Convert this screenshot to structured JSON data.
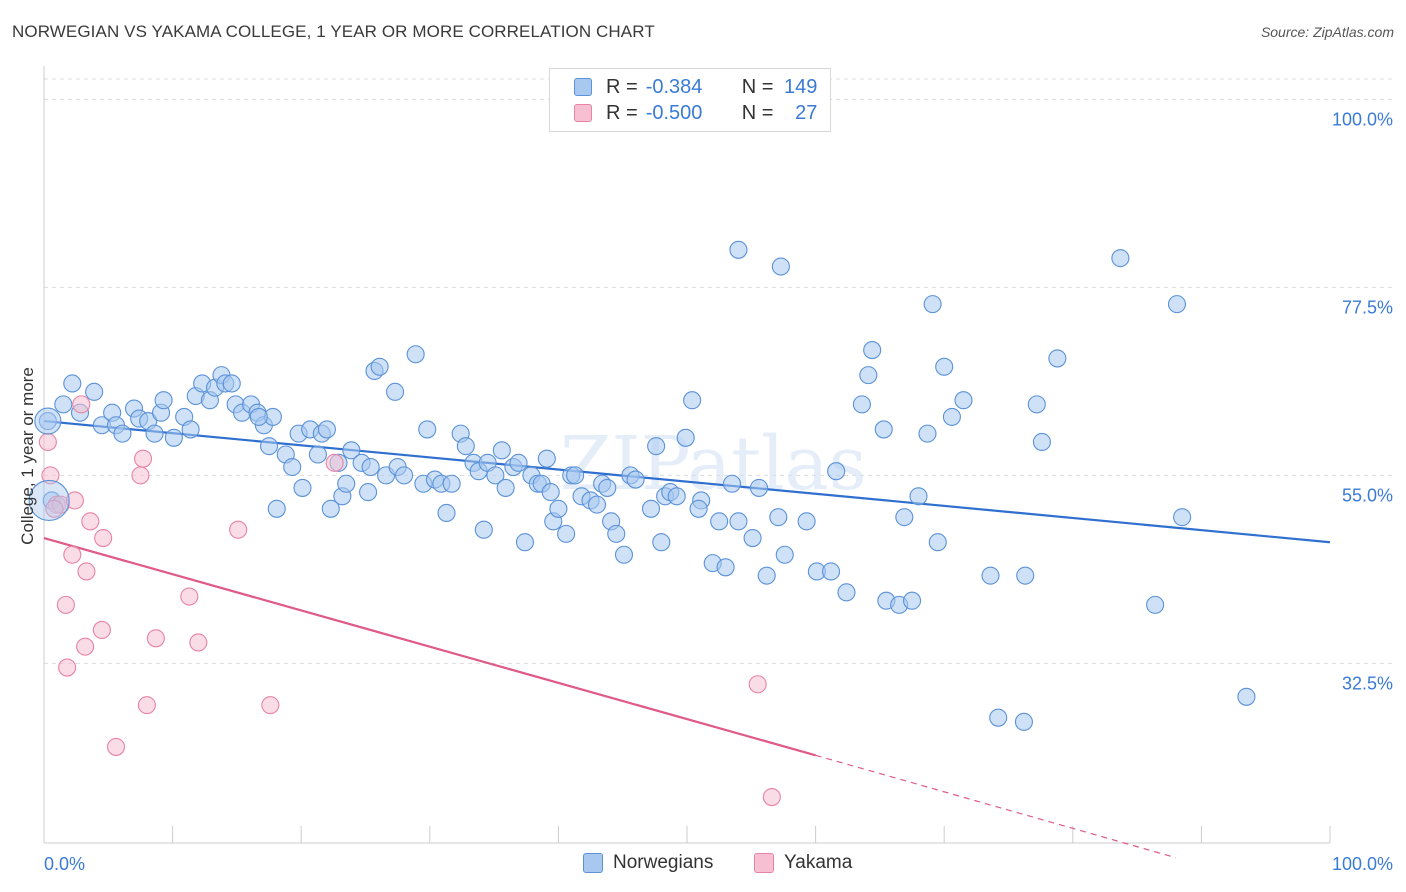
{
  "title": "NORWEGIAN VS YAKAMA COLLEGE, 1 YEAR OR MORE CORRELATION CHART",
  "source": "Source: ZipAtlas.com",
  "watermark": "ZIPatlas",
  "legend": {
    "rows": [
      {
        "r_label": "R =",
        "r_value": "-0.384",
        "n_label": "N =",
        "n_value": "149",
        "color": "#a8c8f0",
        "border": "#5b92d8"
      },
      {
        "r_label": "R =",
        "r_value": "-0.500",
        "n_label": "N =",
        "n_value": "27",
        "color": "#f6c0d2",
        "border": "#e883a5"
      }
    ]
  },
  "bottom_legend": {
    "items": [
      {
        "label": "Norwegians",
        "color": "#a8c8f0",
        "border": "#5b92d8"
      },
      {
        "label": "Yakama",
        "color": "#f6c0d2",
        "border": "#e883a5"
      }
    ]
  },
  "chart_data": {
    "type": "scatter",
    "title": "NORWEGIAN VS YAKAMA COLLEGE, 1 YEAR OR MORE CORRELATION CHART",
    "xlabel": "",
    "ylabel": "College, 1 year or more",
    "xlim": [
      0,
      100
    ],
    "ylim": [
      11,
      104
    ],
    "x_tick_labels": [
      {
        "value": 0,
        "label": "0.0%"
      },
      {
        "value": 100,
        "label": "100.0%"
      }
    ],
    "y_tick_labels": [
      {
        "value": 100,
        "label": "100.0%"
      },
      {
        "value": 77.5,
        "label": "77.5%"
      },
      {
        "value": 55,
        "label": "55.0%"
      },
      {
        "value": 32.5,
        "label": "32.5%"
      }
    ],
    "grid": true,
    "legend_position": "top-center",
    "colors": {
      "norwegians": "#5b92d8",
      "norwegians_fill": "#a8c8f0",
      "yakama": "#e883a5",
      "yakama_fill": "#f6c0d2",
      "norwegians_trend": "#2f6fcf",
      "yakama_trend": "#e05a88"
    },
    "series": [
      {
        "name": "Norwegians",
        "trend": {
          "x0": 0,
          "y0": 61.5,
          "x1": 100,
          "y1": 47.0
        },
        "points": [
          [
            0.3,
            61.5
          ],
          [
            0.6,
            52.0
          ],
          [
            1.5,
            63.5
          ],
          [
            2.2,
            66.0
          ],
          [
            2.8,
            62.5
          ],
          [
            3.9,
            65.0
          ],
          [
            4.5,
            61.0
          ],
          [
            5.3,
            62.5
          ],
          [
            5.6,
            61.0
          ],
          [
            6.1,
            60.0
          ],
          [
            7.0,
            63.0
          ],
          [
            7.4,
            61.8
          ],
          [
            8.1,
            61.5
          ],
          [
            8.6,
            60.0
          ],
          [
            9.1,
            62.5
          ],
          [
            9.3,
            64.0
          ],
          [
            10.1,
            59.5
          ],
          [
            10.9,
            62.0
          ],
          [
            11.4,
            60.5
          ],
          [
            11.8,
            64.5
          ],
          [
            12.3,
            66.0
          ],
          [
            12.9,
            64.0
          ],
          [
            13.3,
            65.5
          ],
          [
            13.8,
            67.0
          ],
          [
            14.1,
            66.0
          ],
          [
            14.6,
            66.0
          ],
          [
            14.9,
            63.5
          ],
          [
            15.4,
            62.5
          ],
          [
            16.1,
            63.5
          ],
          [
            16.6,
            62.5
          ],
          [
            17.1,
            61.0
          ],
          [
            17.5,
            58.5
          ],
          [
            17.8,
            62.0
          ],
          [
            18.1,
            51.0
          ],
          [
            18.8,
            57.5
          ],
          [
            19.3,
            56.0
          ],
          [
            19.8,
            60.0
          ],
          [
            20.1,
            53.5
          ],
          [
            20.7,
            60.5
          ],
          [
            21.3,
            57.5
          ],
          [
            21.6,
            60.0
          ],
          [
            22.0,
            60.5
          ],
          [
            22.3,
            51.0
          ],
          [
            22.9,
            56.5
          ],
          [
            23.2,
            52.5
          ],
          [
            23.5,
            54.0
          ],
          [
            23.9,
            58.0
          ],
          [
            24.7,
            56.5
          ],
          [
            25.2,
            53.0
          ],
          [
            25.4,
            56.0
          ],
          [
            25.7,
            67.5
          ],
          [
            26.1,
            68.0
          ],
          [
            26.6,
            55.0
          ],
          [
            27.3,
            65.0
          ],
          [
            27.5,
            56.0
          ],
          [
            28.0,
            55.0
          ],
          [
            28.9,
            69.5
          ],
          [
            29.5,
            54.0
          ],
          [
            29.8,
            60.5
          ],
          [
            30.4,
            54.5
          ],
          [
            30.9,
            54.0
          ],
          [
            31.3,
            50.5
          ],
          [
            31.7,
            54.0
          ],
          [
            32.4,
            60.0
          ],
          [
            32.8,
            58.5
          ],
          [
            33.4,
            56.5
          ],
          [
            33.8,
            55.5
          ],
          [
            34.2,
            48.5
          ],
          [
            34.5,
            56.5
          ],
          [
            35.1,
            55.0
          ],
          [
            35.6,
            58.0
          ],
          [
            35.9,
            53.5
          ],
          [
            36.5,
            56.0
          ],
          [
            36.9,
            56.5
          ],
          [
            37.4,
            47.0
          ],
          [
            37.9,
            55.0
          ],
          [
            38.4,
            54.0
          ],
          [
            38.7,
            54.0
          ],
          [
            39.1,
            57.0
          ],
          [
            39.4,
            53.0
          ],
          [
            39.6,
            49.5
          ],
          [
            40.0,
            51.0
          ],
          [
            40.6,
            48.0
          ],
          [
            41.0,
            55.0
          ],
          [
            41.3,
            55.0
          ],
          [
            41.8,
            52.5
          ],
          [
            42.5,
            52.0
          ],
          [
            43.0,
            51.5
          ],
          [
            43.4,
            54.0
          ],
          [
            43.8,
            53.5
          ],
          [
            44.1,
            49.5
          ],
          [
            44.5,
            48.0
          ],
          [
            45.1,
            45.5
          ],
          [
            45.6,
            55.0
          ],
          [
            46.0,
            54.5
          ],
          [
            47.2,
            51.0
          ],
          [
            47.6,
            58.5
          ],
          [
            48.0,
            47.0
          ],
          [
            48.3,
            52.5
          ],
          [
            48.7,
            53.0
          ],
          [
            49.2,
            52.5
          ],
          [
            49.9,
            59.5
          ],
          [
            50.4,
            64.0
          ],
          [
            51.1,
            52.0
          ],
          [
            52.0,
            44.5
          ],
          [
            52.5,
            49.5
          ],
          [
            53.0,
            44.0
          ],
          [
            53.5,
            54.0
          ],
          [
            54.0,
            49.5
          ],
          [
            55.1,
            47.5
          ],
          [
            55.6,
            53.5
          ],
          [
            56.2,
            43.0
          ],
          [
            57.1,
            50.0
          ],
          [
            57.6,
            45.5
          ],
          [
            59.3,
            49.5
          ],
          [
            60.1,
            43.5
          ],
          [
            61.2,
            43.5
          ],
          [
            61.6,
            55.5
          ],
          [
            62.4,
            41.0
          ],
          [
            63.6,
            63.5
          ],
          [
            64.1,
            67.0
          ],
          [
            64.4,
            70.0
          ],
          [
            65.3,
            60.5
          ],
          [
            65.5,
            40.0
          ],
          [
            66.5,
            39.5
          ],
          [
            66.9,
            50.0
          ],
          [
            67.5,
            40.0
          ],
          [
            68.0,
            52.5
          ],
          [
            68.7,
            60.0
          ],
          [
            69.5,
            47.0
          ],
          [
            70.6,
            62.0
          ],
          [
            71.5,
            64.0
          ],
          [
            73.6,
            43.0
          ],
          [
            76.3,
            43.0
          ],
          [
            77.2,
            63.5
          ],
          [
            77.6,
            59.0
          ],
          [
            78.8,
            69.0
          ],
          [
            86.4,
            39.5
          ],
          [
            88.5,
            50.0
          ],
          [
            93.5,
            28.5
          ],
          [
            54.0,
            82.0
          ],
          [
            57.3,
            80.0
          ],
          [
            69.1,
            75.5
          ],
          [
            83.7,
            81.0
          ],
          [
            88.1,
            75.5
          ],
          [
            70.0,
            68.0
          ],
          [
            74.2,
            26.0
          ],
          [
            76.2,
            25.5
          ],
          [
            16.7,
            62.0
          ],
          [
            50.9,
            51.0
          ]
        ]
      },
      {
        "name": "Yakama",
        "trend": {
          "x0": 0,
          "y0": 47.5,
          "x1": 60.0,
          "y1": 21.5,
          "dash_x1": 100,
          "dash_y1": 4.0
        },
        "points": [
          [
            0.3,
            59.0
          ],
          [
            0.5,
            55.0
          ],
          [
            1.0,
            51.5
          ],
          [
            1.3,
            51.5
          ],
          [
            1.7,
            39.5
          ],
          [
            1.8,
            32.0
          ],
          [
            2.2,
            45.5
          ],
          [
            2.4,
            52.0
          ],
          [
            2.9,
            63.5
          ],
          [
            3.2,
            34.5
          ],
          [
            3.3,
            43.5
          ],
          [
            3.6,
            49.5
          ],
          [
            4.5,
            36.5
          ],
          [
            4.6,
            47.5
          ],
          [
            5.6,
            22.5
          ],
          [
            7.5,
            55.0
          ],
          [
            7.7,
            57.0
          ],
          [
            8.0,
            27.5
          ],
          [
            8.7,
            35.5
          ],
          [
            11.3,
            40.5
          ],
          [
            12.0,
            35.0
          ],
          [
            15.1,
            48.5
          ],
          [
            17.6,
            27.5
          ],
          [
            22.6,
            56.5
          ],
          [
            55.5,
            30.0
          ],
          [
            56.6,
            16.5
          ],
          [
            0.8,
            51.0
          ]
        ]
      }
    ]
  }
}
